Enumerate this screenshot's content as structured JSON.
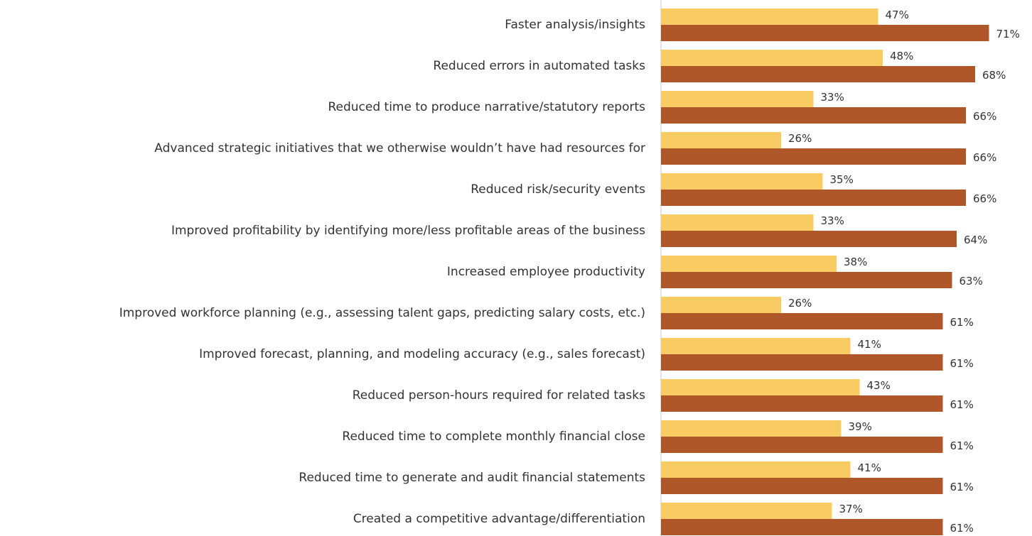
{
  "chart_data": {
    "type": "bar",
    "orientation": "horizontal",
    "categories": [
      "Faster analysis/insights",
      "Reduced errors in automated tasks",
      "Reduced time to produce narrative/statutory reports",
      "Advanced strategic initiatives that we otherwise wouldn’t have had resources for",
      "Reduced risk/security events",
      "Improved profitability by identifying more/less profitable areas of the business",
      "Increased employee productivity",
      "Improved workforce planning (e.g., assessing talent gaps, predicting salary costs, etc.)",
      "Improved forecast, planning, and modeling accuracy (e.g., sales forecast)",
      "Reduced person-hours required for related tasks",
      "Reduced time to complete monthly financial close",
      "Reduced time to generate and audit financial statements",
      "Created a competitive advantage/differentiation"
    ],
    "series": [
      {
        "color": "#f9cb63",
        "values": [
          47,
          48,
          33,
          26,
          35,
          33,
          38,
          26,
          41,
          43,
          39,
          41,
          37
        ],
        "value_labels": [
          "47%",
          "48%",
          "33%",
          "26%",
          "35%",
          "33%",
          "38%",
          "26%",
          "41%",
          "43%",
          "39%",
          "41%",
          "37%"
        ]
      },
      {
        "color": "#b0572a",
        "values": [
          71,
          68,
          66,
          66,
          66,
          64,
          63,
          61,
          61,
          61,
          61,
          61,
          61
        ],
        "value_labels": [
          "71%",
          "68%",
          "66%",
          "66%",
          "66%",
          "64%",
          "63%",
          "61%",
          "61%",
          "61%",
          "61%",
          "61%",
          "61%"
        ]
      }
    ]
  }
}
